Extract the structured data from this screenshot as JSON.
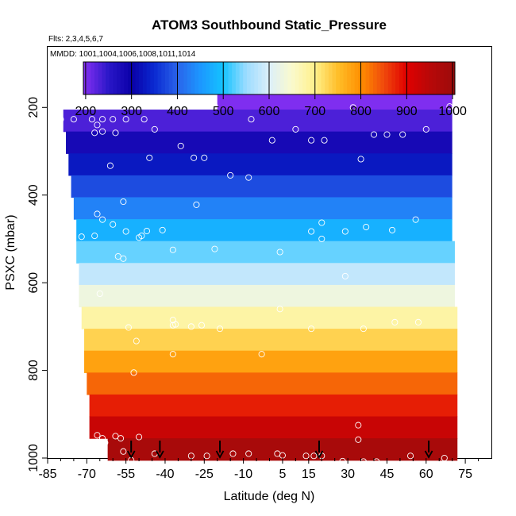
{
  "chart_data": {
    "type": "heatmap",
    "title": "ATOM3 Southbound Static_Pressure",
    "flights_label": "Flts: 2,3,4,5,6,7",
    "dates_label": "MMDD: 1001,1004,1006,1008,1011,1014",
    "xlabel": "Latitude (deg N)",
    "ylabel": "PSXC (mbar)",
    "xlim": [
      -85,
      85
    ],
    "ylim": [
      1000,
      60
    ],
    "x_ticks": [
      -85,
      -70,
      -55,
      -40,
      -25,
      -10,
      5,
      15,
      30,
      45,
      60,
      75
    ],
    "x_tick_labels": [
      "-85",
      "-70",
      "-55",
      "-40",
      "-25",
      "-10",
      "5",
      "15",
      "30",
      "45",
      "60",
      "75"
    ],
    "y_ticks": [
      200,
      400,
      600,
      800,
      1000
    ],
    "y_tick_labels": [
      "200",
      "400",
      "600",
      "800",
      "1000"
    ],
    "colorbar": {
      "range": [
        195,
        1005
      ],
      "ticks": [
        200,
        300,
        400,
        500,
        600,
        700,
        800,
        900,
        1000
      ],
      "tick_labels": [
        "200",
        "300",
        "400",
        "500",
        "600",
        "700",
        "800",
        "900",
        "1000"
      ]
    },
    "colormap": {
      "stops": [
        200,
        250,
        300,
        350,
        400,
        450,
        500,
        550,
        600,
        650,
        700,
        750,
        800,
        850,
        900,
        950,
        1000
      ],
      "colors": [
        "#7f2ef0",
        "#2a17c8",
        "#0a00a8",
        "#0a2ad2",
        "#2a63ea",
        "#1c97ff",
        "#14c3ff",
        "#9cdcff",
        "#dbeffa",
        "#fafacd",
        "#fff08a",
        "#ffbe29",
        "#ff8f00",
        "#f04a0c",
        "#e00000",
        "#b80808",
        "#9e0b0b"
      ]
    },
    "bins": [
      {
        "p": 180,
        "lat_min": -20,
        "lat_max": 70
      },
      {
        "p": 230,
        "lat_min": -79,
        "lat_max": 70
      },
      {
        "p": 280,
        "lat_min": -78,
        "lat_max": 70
      },
      {
        "p": 330,
        "lat_min": -77,
        "lat_max": 70
      },
      {
        "p": 380,
        "lat_min": -76,
        "lat_max": 70
      },
      {
        "p": 430,
        "lat_min": -75,
        "lat_max": 70
      },
      {
        "p": 480,
        "lat_min": -74,
        "lat_max": 70
      },
      {
        "p": 530,
        "lat_min": -74,
        "lat_max": 71
      },
      {
        "p": 580,
        "lat_min": -73,
        "lat_max": 71
      },
      {
        "p": 630,
        "lat_min": -73,
        "lat_max": 71
      },
      {
        "p": 680,
        "lat_min": -72,
        "lat_max": 72
      },
      {
        "p": 730,
        "lat_min": -71,
        "lat_max": 72
      },
      {
        "p": 780,
        "lat_min": -71,
        "lat_max": 72
      },
      {
        "p": 830,
        "lat_min": -70,
        "lat_max": 72
      },
      {
        "p": 880,
        "lat_min": -69,
        "lat_max": 72
      },
      {
        "p": 930,
        "lat_min": -69,
        "lat_max": 72
      },
      {
        "p": 980,
        "lat_min": -62,
        "lat_max": 72
      }
    ],
    "observations": [
      {
        "lat": -80,
        "p": 227
      },
      {
        "lat": -75,
        "p": 227
      },
      {
        "lat": -68,
        "p": 227
      },
      {
        "lat": -64,
        "p": 227
      },
      {
        "lat": -60,
        "p": 227
      },
      {
        "lat": -55,
        "p": 227
      },
      {
        "lat": -48,
        "p": 227
      },
      {
        "lat": -66,
        "p": 240
      },
      {
        "lat": -44,
        "p": 250
      },
      {
        "lat": -67,
        "p": 258
      },
      {
        "lat": -64,
        "p": 255
      },
      {
        "lat": -59,
        "p": 258
      },
      {
        "lat": -21,
        "p": 197
      },
      {
        "lat": 32,
        "p": 200
      },
      {
        "lat": 69,
        "p": 198
      },
      {
        "lat": -7,
        "p": 227
      },
      {
        "lat": 10,
        "p": 250
      },
      {
        "lat": 40,
        "p": 262
      },
      {
        "lat": 45,
        "p": 262
      },
      {
        "lat": 51,
        "p": 262
      },
      {
        "lat": 60,
        "p": 250
      },
      {
        "lat": 1,
        "p": 275
      },
      {
        "lat": 16,
        "p": 275
      },
      {
        "lat": 21,
        "p": 275
      },
      {
        "lat": -34,
        "p": 288
      },
      {
        "lat": -46,
        "p": 315
      },
      {
        "lat": -29,
        "p": 315
      },
      {
        "lat": -25,
        "p": 315
      },
      {
        "lat": 35,
        "p": 318
      },
      {
        "lat": -61,
        "p": 333
      },
      {
        "lat": -15,
        "p": 355
      },
      {
        "lat": -8,
        "p": 360
      },
      {
        "lat": -56,
        "p": 415
      },
      {
        "lat": -28,
        "p": 422
      },
      {
        "lat": -66,
        "p": 443
      },
      {
        "lat": -64,
        "p": 456
      },
      {
        "lat": -60,
        "p": 467
      },
      {
        "lat": -72,
        "p": 495
      },
      {
        "lat": -67,
        "p": 493
      },
      {
        "lat": -55,
        "p": 483
      },
      {
        "lat": -50,
        "p": 497
      },
      {
        "lat": -49,
        "p": 493
      },
      {
        "lat": -47,
        "p": 482
      },
      {
        "lat": -41,
        "p": 480
      },
      {
        "lat": 20,
        "p": 463
      },
      {
        "lat": 29,
        "p": 483
      },
      {
        "lat": 37,
        "p": 473
      },
      {
        "lat": 47,
        "p": 480
      },
      {
        "lat": 56,
        "p": 456
      },
      {
        "lat": 16,
        "p": 483
      },
      {
        "lat": 20,
        "p": 500
      },
      {
        "lat": -58,
        "p": 540
      },
      {
        "lat": -56,
        "p": 545
      },
      {
        "lat": -37,
        "p": 525
      },
      {
        "lat": -21,
        "p": 523
      },
      {
        "lat": 4,
        "p": 530
      },
      {
        "lat": 29,
        "p": 585
      },
      {
        "lat": -65,
        "p": 625
      },
      {
        "lat": -30,
        "p": 700
      },
      {
        "lat": -37,
        "p": 685
      },
      {
        "lat": -37,
        "p": 697
      },
      {
        "lat": -36,
        "p": 695
      },
      {
        "lat": -26,
        "p": 697
      },
      {
        "lat": -19,
        "p": 705
      },
      {
        "lat": 4,
        "p": 660
      },
      {
        "lat": 16,
        "p": 705
      },
      {
        "lat": 36,
        "p": 705
      },
      {
        "lat": 48,
        "p": 690
      },
      {
        "lat": 57,
        "p": 690
      },
      {
        "lat": -54,
        "p": 702
      },
      {
        "lat": -51,
        "p": 733
      },
      {
        "lat": -37,
        "p": 763
      },
      {
        "lat": -52,
        "p": 805
      },
      {
        "lat": -3,
        "p": 763
      },
      {
        "lat": -66,
        "p": 948
      },
      {
        "lat": -64,
        "p": 955
      },
      {
        "lat": -63,
        "p": 965
      },
      {
        "lat": -59,
        "p": 950
      },
      {
        "lat": -57,
        "p": 955
      },
      {
        "lat": -50,
        "p": 952
      },
      {
        "lat": -56,
        "p": 985
      },
      {
        "lat": -44,
        "p": 990
      },
      {
        "lat": -30,
        "p": 995
      },
      {
        "lat": -24,
        "p": 995
      },
      {
        "lat": -8,
        "p": 990
      },
      {
        "lat": 3,
        "p": 990
      },
      {
        "lat": 14,
        "p": 995
      },
      {
        "lat": 17,
        "p": 995
      },
      {
        "lat": 20,
        "p": 995
      },
      {
        "lat": 34,
        "p": 925
      },
      {
        "lat": 34,
        "p": 958
      },
      {
        "lat": 28,
        "p": 1007
      },
      {
        "lat": 36,
        "p": 1008
      },
      {
        "lat": 54,
        "p": 995
      },
      {
        "lat": 67,
        "p": 1000
      },
      {
        "lat": -53,
        "p": 1005
      },
      {
        "lat": 41,
        "p": 1008
      },
      {
        "lat": -14,
        "p": 990
      },
      {
        "lat": 5,
        "p": 994
      }
    ],
    "arrows": [
      -53,
      -42,
      -19,
      19,
      61
    ]
  }
}
